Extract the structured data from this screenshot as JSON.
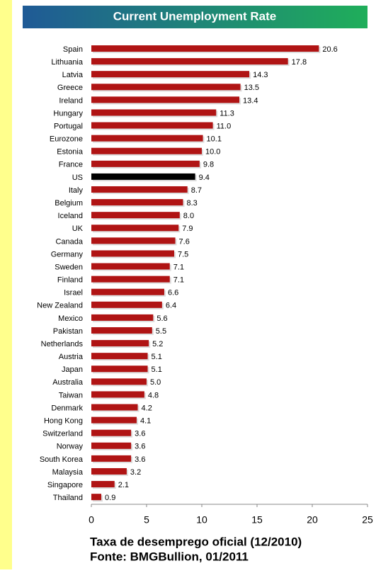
{
  "chart_data": {
    "type": "hbar",
    "title": "Current Unemployment Rate",
    "categories": [
      "Spain",
      "Lithuania",
      "Latvia",
      "Greece",
      "Ireland",
      "Hungary",
      "Portugal",
      "Eurozone",
      "Estonia",
      "France",
      "US",
      "Italy",
      "Belgium",
      "Iceland",
      "UK",
      "Canada",
      "Germany",
      "Sweden",
      "Finland",
      "Israel",
      "New Zealand",
      "Mexico",
      "Pakistan",
      "Netherlands",
      "Austria",
      "Japan",
      "Australia",
      "Taiwan",
      "Denmark",
      "Hong Kong",
      "Switzerland",
      "Norway",
      "South Korea",
      "Malaysia",
      "Singapore",
      "Thailand"
    ],
    "values": [
      20.6,
      17.8,
      14.3,
      13.5,
      13.4,
      11.3,
      11.0,
      10.1,
      10.0,
      9.8,
      9.4,
      8.7,
      8.3,
      8.0,
      7.9,
      7.6,
      7.5,
      7.1,
      7.1,
      6.6,
      6.4,
      5.6,
      5.5,
      5.2,
      5.1,
      5.1,
      5.0,
      4.8,
      4.2,
      4.1,
      3.6,
      3.6,
      3.6,
      3.2,
      2.1,
      0.9
    ],
    "value_labels": [
      "20.6",
      "17.8",
      "14.3",
      "13.5",
      "13.4",
      "11.3",
      "11.0",
      "10.1",
      "10.0",
      "9.8",
      "9.4",
      "8.7",
      "8.3",
      "8.0",
      "7.9",
      "7.6",
      "7.5",
      "7.1",
      "7.1",
      "6.6",
      "6.4",
      "5.6",
      "5.5",
      "5.2",
      "5.1",
      "5.1",
      "5.0",
      "4.8",
      "4.2",
      "4.1",
      "3.6",
      "3.6",
      "3.6",
      "3.2",
      "2.1",
      "0.9"
    ],
    "colors": [
      "#b01414",
      "#b01414",
      "#b01414",
      "#b01414",
      "#b01414",
      "#b01414",
      "#b01414",
      "#b01414",
      "#b01414",
      "#b01414",
      "#000000",
      "#b01414",
      "#b01414",
      "#b01414",
      "#b01414",
      "#b01414",
      "#b01414",
      "#b01414",
      "#b01414",
      "#b01414",
      "#b01414",
      "#b01414",
      "#b01414",
      "#b01414",
      "#b01414",
      "#b01414",
      "#b01414",
      "#b01414",
      "#b01414",
      "#b01414",
      "#b01414",
      "#b01414",
      "#b01414",
      "#b01414",
      "#b01414",
      "#b01414"
    ],
    "xlim": [
      0,
      25
    ],
    "xticks": [
      0,
      5,
      10,
      15,
      20,
      25
    ],
    "footnotes": [
      "Taxa de desemprego oficial (12/2010)",
      "Fonte: BMGBullion, 01/2011"
    ]
  }
}
